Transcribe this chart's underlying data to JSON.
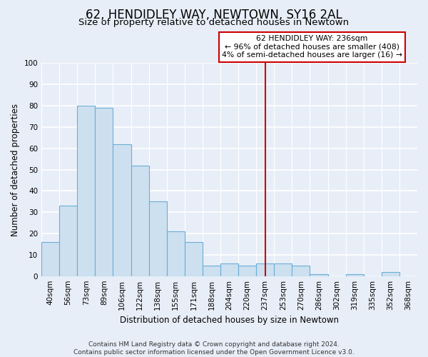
{
  "title": "62, HENDIDLEY WAY, NEWTOWN, SY16 2AL",
  "subtitle": "Size of property relative to detached houses in Newtown",
  "xlabel": "Distribution of detached houses by size in Newtown",
  "ylabel": "Number of detached properties",
  "bin_labels": [
    "40sqm",
    "56sqm",
    "73sqm",
    "89sqm",
    "106sqm",
    "122sqm",
    "138sqm",
    "155sqm",
    "171sqm",
    "188sqm",
    "204sqm",
    "220sqm",
    "237sqm",
    "253sqm",
    "270sqm",
    "286sqm",
    "302sqm",
    "319sqm",
    "335sqm",
    "352sqm",
    "368sqm"
  ],
  "bar_heights": [
    16,
    33,
    80,
    79,
    62,
    52,
    35,
    21,
    16,
    5,
    6,
    5,
    6,
    6,
    5,
    1,
    0,
    1,
    0,
    2,
    0
  ],
  "bar_color": "#cde0f0",
  "bar_edge_color": "#6aaed6",
  "vline_x_index": 12,
  "vline_color": "#cc0000",
  "ylim": [
    0,
    100
  ],
  "yticks": [
    0,
    10,
    20,
    30,
    40,
    50,
    60,
    70,
    80,
    90,
    100
  ],
  "annotation_title": "62 HENDIDLEY WAY: 236sqm",
  "annotation_line1": "← 96% of detached houses are smaller (408)",
  "annotation_line2": "4% of semi-detached houses are larger (16) →",
  "annotation_box_facecolor": "#ffffff",
  "annotation_box_edgecolor": "#cc0000",
  "footer_line1": "Contains HM Land Registry data © Crown copyright and database right 2024.",
  "footer_line2": "Contains public sector information licensed under the Open Government Licence v3.0.",
  "background_color": "#e8eef8",
  "grid_color": "#ffffff",
  "title_fontsize": 12,
  "subtitle_fontsize": 9.5,
  "axis_label_fontsize": 8.5,
  "tick_fontsize": 7.5,
  "footer_fontsize": 6.5
}
